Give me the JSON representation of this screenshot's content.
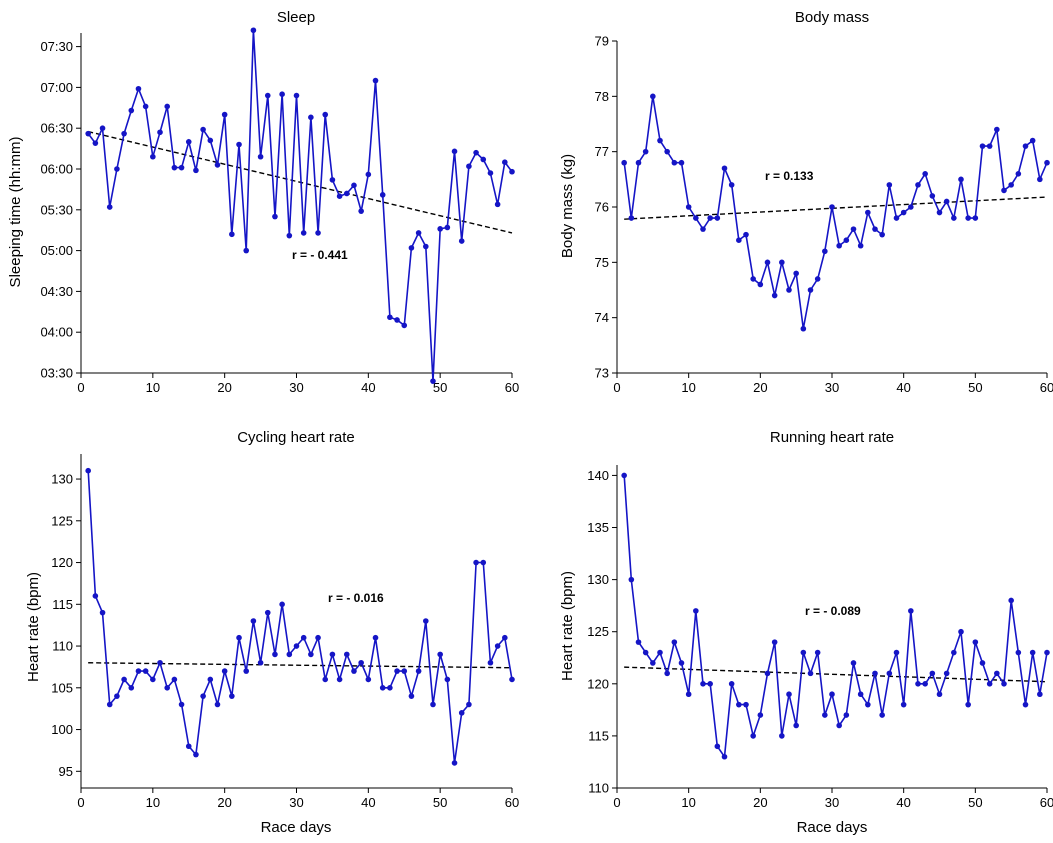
{
  "colors": {
    "series": "#1515c6",
    "trend": "#000000",
    "axis": "#000000",
    "background": "#ffffff"
  },
  "chart_data": [
    {
      "id": "sleep",
      "type": "line",
      "title": "Sleep",
      "xlabel": "",
      "ylabel": "Sleeping time (hh:mm)",
      "xlim": [
        0,
        60
      ],
      "ylim": [
        210,
        460
      ],
      "xticks": [
        0,
        10,
        20,
        30,
        40,
        50,
        60
      ],
      "yticks": [
        210,
        240,
        270,
        300,
        330,
        360,
        390,
        420,
        450
      ],
      "ytick_labels": [
        "03:30",
        "04:00",
        "04:30",
        "05:00",
        "05:30",
        "06:00",
        "06:30",
        "07:00",
        "07:30"
      ],
      "grid": false,
      "legend": "none",
      "x": [
        1,
        2,
        3,
        4,
        5,
        6,
        7,
        8,
        9,
        10,
        11,
        12,
        13,
        14,
        15,
        16,
        17,
        18,
        19,
        20,
        21,
        22,
        23,
        24,
        25,
        26,
        27,
        28,
        29,
        30,
        31,
        32,
        33,
        34,
        35,
        36,
        37,
        38,
        39,
        40,
        41,
        42,
        43,
        44,
        45,
        46,
        47,
        48,
        49,
        50,
        51,
        52,
        53,
        54,
        55,
        56,
        57,
        58,
        59,
        60
      ],
      "values": [
        386,
        379,
        390,
        332,
        360,
        386,
        403,
        419,
        406,
        369,
        387,
        406,
        361,
        361,
        380,
        359,
        389,
        381,
        363,
        400,
        312,
        378,
        300,
        462,
        369,
        414,
        325,
        415,
        311,
        414,
        313,
        398,
        313,
        400,
        352,
        340,
        342,
        348,
        329,
        356,
        425,
        341,
        251,
        249,
        245,
        302,
        313,
        303,
        204,
        316,
        317,
        373,
        307,
        362,
        372,
        367,
        357,
        334,
        365,
        358
      ],
      "trend": {
        "x": [
          1,
          60
        ],
        "y": [
          387.5,
          313.0
        ]
      },
      "annotation": "r = - 0.441"
    },
    {
      "id": "body-mass",
      "type": "line",
      "title": "Body mass",
      "xlabel": "",
      "ylabel": "Body mass (kg)",
      "xlim": [
        0,
        60
      ],
      "ylim": [
        73,
        79
      ],
      "xticks": [
        0,
        10,
        20,
        30,
        40,
        50,
        60
      ],
      "yticks": [
        73,
        74,
        75,
        76,
        77,
        78,
        79
      ],
      "ytick_labels": [
        "73",
        "74",
        "75",
        "76",
        "77",
        "78",
        "79"
      ],
      "grid": false,
      "legend": "none",
      "x": [
        1,
        2,
        3,
        4,
        5,
        6,
        7,
        8,
        9,
        10,
        11,
        12,
        13,
        14,
        15,
        16,
        17,
        18,
        19,
        20,
        21,
        22,
        23,
        24,
        25,
        26,
        27,
        28,
        29,
        30,
        31,
        32,
        33,
        34,
        35,
        36,
        37,
        38,
        39,
        40,
        41,
        42,
        43,
        44,
        45,
        46,
        47,
        48,
        49,
        50,
        51,
        52,
        53,
        54,
        55,
        56,
        57,
        58,
        59,
        60
      ],
      "values": [
        76.8,
        75.8,
        76.8,
        77.0,
        78.0,
        77.2,
        77.0,
        76.8,
        76.8,
        76.0,
        75.8,
        75.6,
        75.8,
        75.8,
        76.7,
        76.4,
        75.4,
        75.5,
        74.7,
        74.6,
        75.0,
        74.4,
        75.0,
        74.5,
        74.8,
        73.8,
        74.5,
        74.7,
        75.2,
        76.0,
        75.3,
        75.4,
        75.6,
        75.3,
        75.9,
        75.6,
        75.5,
        76.4,
        75.8,
        75.9,
        76.0,
        76.4,
        76.6,
        76.2,
        75.9,
        76.1,
        75.8,
        76.5,
        75.8,
        75.8,
        77.1,
        77.1,
        77.4,
        76.3,
        76.4,
        76.6,
        77.1,
        77.2,
        76.5,
        76.8
      ],
      "trend": {
        "x": [
          1,
          60
        ],
        "y": [
          75.78,
          76.18
        ]
      },
      "annotation": "r = 0.133"
    },
    {
      "id": "cycling-heart-rate",
      "type": "line",
      "title": "Cycling heart rate",
      "xlabel": "Race days",
      "ylabel": "Heart rate (bpm)",
      "xlim": [
        0,
        60
      ],
      "ylim": [
        93,
        133
      ],
      "xticks": [
        0,
        10,
        20,
        30,
        40,
        50,
        60
      ],
      "yticks": [
        95,
        100,
        105,
        110,
        115,
        120,
        125,
        130
      ],
      "ytick_labels": [
        "95",
        "100",
        "105",
        "110",
        "115",
        "120",
        "125",
        "130"
      ],
      "grid": false,
      "legend": "none",
      "x": [
        1,
        2,
        3,
        4,
        5,
        6,
        7,
        8,
        9,
        10,
        11,
        12,
        13,
        14,
        15,
        16,
        17,
        18,
        19,
        20,
        21,
        22,
        23,
        24,
        25,
        26,
        27,
        28,
        29,
        30,
        31,
        32,
        33,
        34,
        35,
        36,
        37,
        38,
        39,
        40,
        41,
        42,
        43,
        44,
        45,
        46,
        47,
        48,
        49,
        50,
        51,
        52,
        53,
        54,
        55,
        56,
        57,
        58,
        59,
        60
      ],
      "values": [
        131,
        116,
        114,
        103,
        104,
        106,
        105,
        107,
        107,
        106,
        108,
        105,
        106,
        103,
        98,
        97,
        104,
        106,
        103,
        107,
        104,
        111,
        107,
        113,
        108,
        114,
        109,
        115,
        109,
        110,
        111,
        109,
        111,
        106,
        109,
        106,
        109,
        107,
        108,
        106,
        111,
        105,
        105,
        107,
        107,
        104,
        107,
        113,
        103,
        109,
        106,
        96,
        102,
        103,
        120,
        120,
        108,
        110,
        111,
        106
      ],
      "trend": {
        "x": [
          1,
          60
        ],
        "y": [
          108.0,
          107.4
        ]
      },
      "annotation": "r = - 0.016"
    },
    {
      "id": "running-heart-rate",
      "type": "line",
      "title": "Running heart rate",
      "xlabel": "Race days",
      "ylabel": "Heart rate (bpm)",
      "xlim": [
        0,
        60
      ],
      "ylim": [
        110,
        141
      ],
      "xticks": [
        0,
        10,
        20,
        30,
        40,
        50,
        60
      ],
      "yticks": [
        110,
        115,
        120,
        125,
        130,
        135,
        140
      ],
      "ytick_labels": [
        "110",
        "115",
        "120",
        "125",
        "130",
        "135",
        "140"
      ],
      "grid": false,
      "legend": "none",
      "x": [
        1,
        2,
        3,
        4,
        5,
        6,
        7,
        8,
        9,
        10,
        11,
        12,
        13,
        14,
        15,
        16,
        17,
        18,
        19,
        20,
        21,
        22,
        23,
        24,
        25,
        26,
        27,
        28,
        29,
        30,
        31,
        32,
        33,
        34,
        35,
        36,
        37,
        38,
        39,
        40,
        41,
        42,
        43,
        44,
        45,
        46,
        47,
        48,
        49,
        50,
        51,
        52,
        53,
        54,
        55,
        56,
        57,
        58,
        59,
        60
      ],
      "values": [
        140,
        130,
        124,
        123,
        122,
        123,
        121,
        124,
        122,
        119,
        127,
        120,
        120,
        114,
        113,
        120,
        118,
        118,
        115,
        117,
        121,
        124,
        115,
        119,
        116,
        123,
        121,
        123,
        117,
        119,
        116,
        117,
        122,
        119,
        118,
        121,
        117,
        121,
        123,
        118,
        127,
        120,
        120,
        121,
        119,
        121,
        123,
        125,
        118,
        124,
        122,
        120,
        121,
        120,
        128,
        123,
        118,
        123,
        119,
        123
      ],
      "trend": {
        "x": [
          1,
          60
        ],
        "y": [
          121.6,
          120.2
        ]
      },
      "annotation": "r = - 0.089"
    }
  ]
}
